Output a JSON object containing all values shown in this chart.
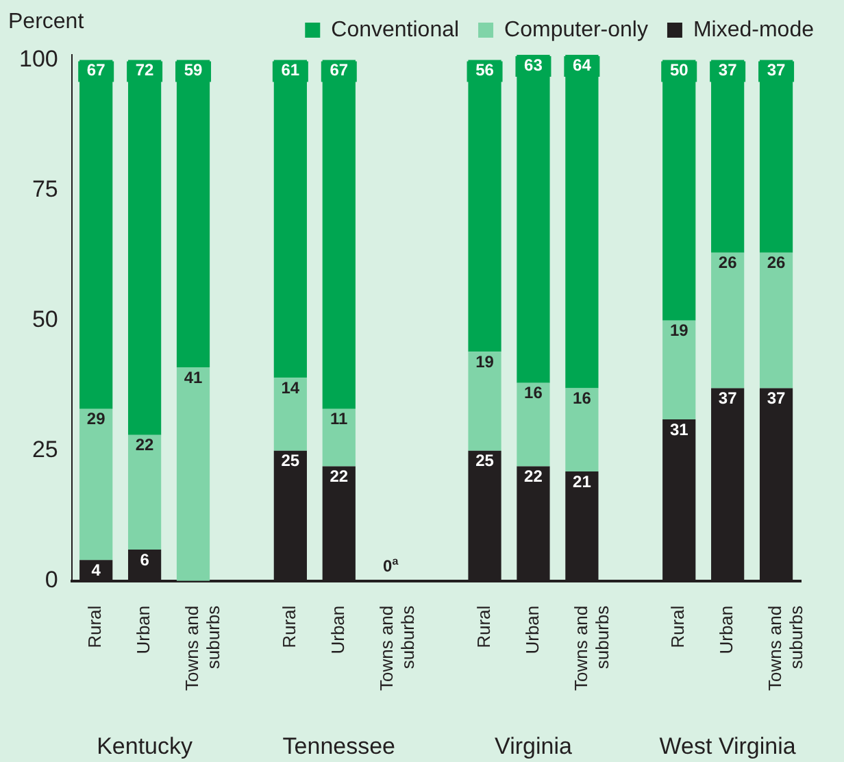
{
  "chart_data": {
    "type": "bar",
    "stacked": true,
    "ylabel": "Percent",
    "categories": [
      "Rural",
      "Urban",
      "Towns and suburbs",
      null,
      "Rural",
      "Urban",
      "Towns and suburbs",
      null,
      "Rural",
      "Urban",
      "Towns and suburbs",
      null,
      "Rural",
      "Urban",
      "Towns and suburbs"
    ],
    "series": [
      {
        "name": "Mixed-mode",
        "color": "#231f20",
        "values": [
          4,
          6,
          0,
          null,
          25,
          22,
          0,
          null,
          25,
          22,
          21,
          null,
          31,
          37,
          37
        ],
        "value_labels": [
          "4",
          "6",
          null,
          null,
          "25",
          "22",
          "0$^{a}$",
          null,
          "25",
          "22",
          "21",
          null,
          "31",
          "37",
          "37"
        ]
      },
      {
        "name": "Computer-only",
        "color": "#80d4a8",
        "values": [
          29,
          22,
          41,
          null,
          14,
          11,
          null,
          null,
          19,
          16,
          16,
          null,
          19,
          26,
          26
        ],
        "value_labels": [
          "29",
          "22",
          "41",
          null,
          "14",
          "11",
          null,
          null,
          "19",
          "16",
          "16",
          null,
          "19",
          "26",
          "26"
        ]
      },
      {
        "name": "Conventional",
        "color": "#00a651",
        "values": [
          67,
          72,
          59,
          null,
          61,
          67,
          null,
          null,
          56,
          63,
          64,
          null,
          50,
          37,
          37
        ],
        "value_labels": [
          "67",
          "72",
          "59",
          null,
          "61",
          "67",
          null,
          null,
          "56",
          "63",
          "64",
          null,
          "50",
          "37",
          "37"
        ]
      }
    ],
    "annotations": [
      "Kentucky",
      "Tennessee",
      "Virginia",
      "West Virginia"
    ],
    "ylim": [
      0,
      101
    ],
    "yticks": [
      0,
      25,
      50,
      75,
      100
    ],
    "grid": false,
    "legend": "top right"
  }
}
